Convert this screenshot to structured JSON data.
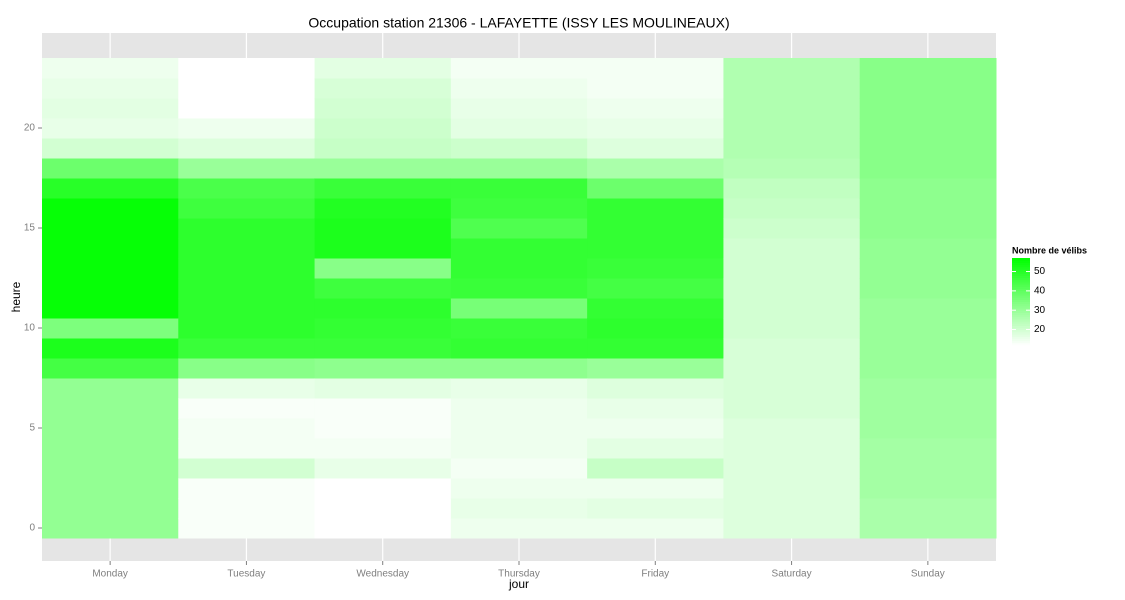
{
  "chart_data": {
    "type": "heatmap",
    "title": "Occupation station 21306 - LAFAYETTE (ISSY LES MOULINEAUX)",
    "x_label": "jour",
    "y_label": "heure",
    "x": [
      "Monday",
      "Tuesday",
      "Wednesday",
      "Thursday",
      "Friday",
      "Saturday",
      "Sunday"
    ],
    "y": [
      0,
      1,
      2,
      3,
      4,
      5,
      6,
      7,
      8,
      9,
      10,
      11,
      12,
      13,
      14,
      15,
      16,
      17,
      18,
      19,
      20,
      21,
      22,
      23
    ],
    "values": [
      [
        31,
        31,
        31,
        31,
        31,
        31,
        31,
        31,
        45,
        52,
        35,
        56,
        56,
        56,
        56,
        56,
        56,
        50,
        38,
        20,
        16,
        17,
        16,
        15
      ],
      [
        13,
        13,
        13,
        20,
        14,
        14,
        13,
        16,
        33,
        47,
        49,
        49,
        49,
        49,
        49,
        49,
        46,
        44,
        30,
        18,
        15,
        12,
        12,
        12
      ],
      [
        12,
        12,
        12,
        16,
        14,
        13,
        13,
        17,
        32,
        47,
        48,
        49,
        46,
        33,
        52,
        52,
        51,
        47,
        30,
        22,
        21,
        20,
        19,
        17
      ],
      [
        15,
        16,
        15,
        14,
        15,
        15,
        15,
        16,
        32,
        48,
        47,
        36,
        47,
        48,
        48,
        43,
        46,
        47,
        30,
        21,
        17,
        16,
        15,
        14
      ],
      [
        15,
        17,
        15,
        22,
        17,
        15,
        16,
        18,
        30,
        48,
        49,
        48,
        45,
        47,
        48,
        48,
        48,
        38,
        27,
        18,
        16,
        15,
        14,
        14
      ],
      [
        18,
        18,
        18,
        18,
        18,
        18,
        19,
        19,
        19,
        19,
        20,
        20,
        20,
        20,
        20,
        21,
        22,
        23,
        25,
        26,
        26,
        26,
        26,
        26
      ],
      [
        27,
        27,
        28,
        28,
        28,
        29,
        29,
        29,
        30,
        30,
        30,
        30,
        31,
        31,
        31,
        32,
        32,
        32,
        33,
        33,
        33,
        33,
        33,
        33
      ]
    ],
    "ylim": [
      -1.65,
      24.75
    ],
    "yticks": [
      0,
      5,
      10,
      15,
      20
    ],
    "grid": true,
    "colorbar": {
      "title": "Nombre de vélibs",
      "lim": [
        12,
        57
      ],
      "ticks": [
        20,
        30,
        40,
        50
      ],
      "low_color": "#ffffff",
      "high_color": "#00ff00"
    }
  }
}
